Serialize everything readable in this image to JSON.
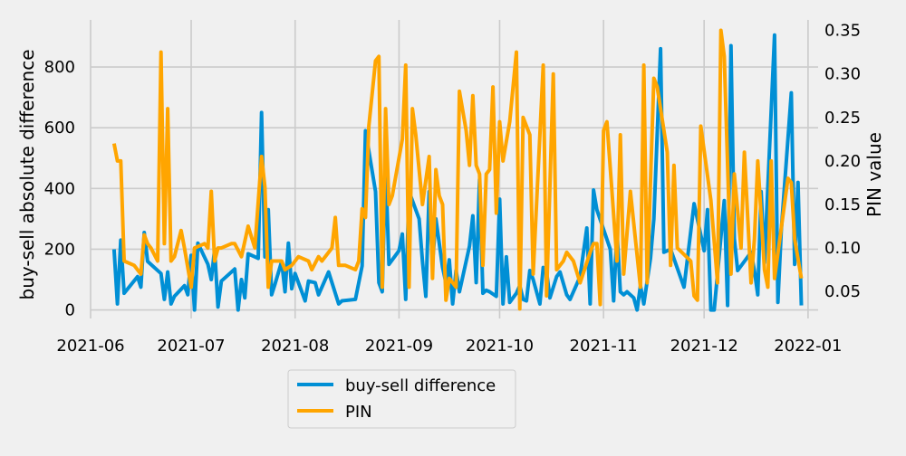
{
  "chart_data": {
    "type": "line",
    "x_axis": {
      "ticks": [
        "2021-06",
        "2021-07",
        "2021-08",
        "2021-09",
        "2021-10",
        "2021-11",
        "2021-12",
        "2022-01"
      ],
      "range": [
        "2021-06-01",
        "2022-01-04"
      ]
    },
    "y_left": {
      "label": "buy-sell absolute difference",
      "ticks": [
        0,
        200,
        400,
        600,
        800
      ],
      "range": [
        -28,
        955
      ]
    },
    "y_right": {
      "label": "PIN value",
      "ticks": [
        0.05,
        0.1,
        0.15,
        0.2,
        0.25,
        0.3,
        0.35
      ],
      "range": [
        0.019,
        0.362
      ]
    },
    "grid": true,
    "legend_placement": "bottom-center, below plot",
    "series": [
      {
        "name": "buy-sell difference",
        "axis": "left",
        "color": "#008fd5",
        "points": [
          [
            "2021-06-08",
            200
          ],
          [
            "2021-06-09",
            20
          ],
          [
            "2021-06-10",
            230
          ],
          [
            "2021-06-11",
            55
          ],
          [
            "2021-06-15",
            110
          ],
          [
            "2021-06-16",
            75
          ],
          [
            "2021-06-17",
            255
          ],
          [
            "2021-06-18",
            160
          ],
          [
            "2021-06-22",
            120
          ],
          [
            "2021-06-23",
            35
          ],
          [
            "2021-06-24",
            125
          ],
          [
            "2021-06-25",
            20
          ],
          [
            "2021-06-26",
            45
          ],
          [
            "2021-06-29",
            80
          ],
          [
            "2021-06-30",
            50
          ],
          [
            "2021-07-01",
            180
          ],
          [
            "2021-07-02",
            0
          ],
          [
            "2021-07-03",
            220
          ],
          [
            "2021-07-06",
            150
          ],
          [
            "2021-07-07",
            100
          ],
          [
            "2021-07-08",
            200
          ],
          [
            "2021-07-09",
            10
          ],
          [
            "2021-07-10",
            95
          ],
          [
            "2021-07-14",
            135
          ],
          [
            "2021-07-15",
            0
          ],
          [
            "2021-07-16",
            100
          ],
          [
            "2021-07-17",
            40
          ],
          [
            "2021-07-18",
            185
          ],
          [
            "2021-07-21",
            170
          ],
          [
            "2021-07-22",
            650
          ],
          [
            "2021-07-23",
            175
          ],
          [
            "2021-07-24",
            330
          ],
          [
            "2021-07-25",
            50
          ],
          [
            "2021-07-26",
            85
          ],
          [
            "2021-07-28",
            160
          ],
          [
            "2021-07-29",
            60
          ],
          [
            "2021-07-30",
            220
          ],
          [
            "2021-07-31",
            70
          ],
          [
            "2021-08-01",
            120
          ],
          [
            "2021-08-04",
            30
          ],
          [
            "2021-08-05",
            95
          ],
          [
            "2021-08-07",
            90
          ],
          [
            "2021-08-08",
            50
          ],
          [
            "2021-08-11",
            125
          ],
          [
            "2021-08-14",
            20
          ],
          [
            "2021-08-15",
            30
          ],
          [
            "2021-08-19",
            35
          ],
          [
            "2021-08-21",
            145
          ],
          [
            "2021-08-22",
            590
          ],
          [
            "2021-08-25",
            390
          ],
          [
            "2021-08-26",
            90
          ],
          [
            "2021-08-27",
            60
          ],
          [
            "2021-08-28",
            480
          ],
          [
            "2021-08-29",
            150
          ],
          [
            "2021-09-01",
            195
          ],
          [
            "2021-09-02",
            250
          ],
          [
            "2021-09-03",
            35
          ],
          [
            "2021-09-04",
            390
          ],
          [
            "2021-09-07",
            300
          ],
          [
            "2021-09-08",
            160
          ],
          [
            "2021-09-09",
            45
          ],
          [
            "2021-09-10",
            390
          ],
          [
            "2021-09-11",
            155
          ],
          [
            "2021-09-12",
            300
          ],
          [
            "2021-09-14",
            140
          ],
          [
            "2021-09-15",
            90
          ],
          [
            "2021-09-16",
            165
          ],
          [
            "2021-09-17",
            20
          ],
          [
            "2021-09-18",
            130
          ],
          [
            "2021-09-19",
            60
          ],
          [
            "2021-09-22",
            210
          ],
          [
            "2021-09-23",
            310
          ],
          [
            "2021-09-24",
            90
          ],
          [
            "2021-09-25",
            430
          ],
          [
            "2021-09-26",
            55
          ],
          [
            "2021-09-27",
            65
          ],
          [
            "2021-09-28",
            60
          ],
          [
            "2021-09-30",
            45
          ],
          [
            "2021-10-01",
            365
          ],
          [
            "2021-10-02",
            20
          ],
          [
            "2021-10-03",
            175
          ],
          [
            "2021-10-04",
            25
          ],
          [
            "2021-10-06",
            55
          ],
          [
            "2021-10-07",
            80
          ],
          [
            "2021-10-08",
            35
          ],
          [
            "2021-10-09",
            30
          ],
          [
            "2021-10-10",
            130
          ],
          [
            "2021-10-11",
            100
          ],
          [
            "2021-10-13",
            20
          ],
          [
            "2021-10-14",
            140
          ],
          [
            "2021-10-15",
            125
          ],
          [
            "2021-10-16",
            40
          ],
          [
            "2021-10-18",
            110
          ],
          [
            "2021-10-19",
            125
          ],
          [
            "2021-10-21",
            50
          ],
          [
            "2021-10-22",
            35
          ],
          [
            "2021-10-25",
            110
          ],
          [
            "2021-10-27",
            270
          ],
          [
            "2021-10-28",
            20
          ],
          [
            "2021-10-29",
            395
          ],
          [
            "2021-10-30",
            330
          ],
          [
            "2021-11-03",
            200
          ],
          [
            "2021-11-04",
            30
          ],
          [
            "2021-11-05",
            260
          ],
          [
            "2021-11-06",
            60
          ],
          [
            "2021-11-07",
            50
          ],
          [
            "2021-11-08",
            60
          ],
          [
            "2021-11-10",
            40
          ],
          [
            "2021-11-11",
            0
          ],
          [
            "2021-11-12",
            80
          ],
          [
            "2021-11-13",
            20
          ],
          [
            "2021-11-15",
            170
          ],
          [
            "2021-11-16",
            300
          ],
          [
            "2021-11-18",
            860
          ],
          [
            "2021-11-19",
            190
          ],
          [
            "2021-11-21",
            200
          ],
          [
            "2021-11-25",
            75
          ],
          [
            "2021-11-28",
            350
          ],
          [
            "2021-12-01",
            195
          ],
          [
            "2021-12-02",
            330
          ],
          [
            "2021-12-03",
            0
          ],
          [
            "2021-12-04",
            0
          ],
          [
            "2021-12-07",
            360
          ],
          [
            "2021-12-08",
            15
          ],
          [
            "2021-12-09",
            870
          ],
          [
            "2021-12-10",
            235
          ],
          [
            "2021-12-11",
            130
          ],
          [
            "2021-12-15",
            190
          ],
          [
            "2021-12-16",
            130
          ],
          [
            "2021-12-17",
            50
          ],
          [
            "2021-12-18",
            390
          ],
          [
            "2021-12-19",
            155
          ],
          [
            "2021-12-22",
            905
          ],
          [
            "2021-12-23",
            25
          ],
          [
            "2021-12-24",
            260
          ],
          [
            "2021-12-27",
            715
          ],
          [
            "2021-12-28",
            150
          ],
          [
            "2021-12-29",
            420
          ],
          [
            "2021-12-30",
            15
          ]
        ]
      },
      {
        "name": "PIN",
        "axis": "right",
        "color": "#ffa500",
        "points": [
          [
            "2021-06-08",
            0.22
          ],
          [
            "2021-06-09",
            0.2
          ],
          [
            "2021-06-10",
            0.2
          ],
          [
            "2021-06-11",
            0.085
          ],
          [
            "2021-06-14",
            0.08
          ],
          [
            "2021-06-15",
            0.075
          ],
          [
            "2021-06-16",
            0.07
          ],
          [
            "2021-06-17",
            0.115
          ],
          [
            "2021-06-18",
            0.105
          ],
          [
            "2021-06-19",
            0.1
          ],
          [
            "2021-06-21",
            0.085
          ],
          [
            "2021-06-22",
            0.325
          ],
          [
            "2021-06-23",
            0.105
          ],
          [
            "2021-06-24",
            0.26
          ],
          [
            "2021-06-25",
            0.085
          ],
          [
            "2021-06-26",
            0.09
          ],
          [
            "2021-06-28",
            0.12
          ],
          [
            "2021-06-29",
            0.1
          ],
          [
            "2021-07-01",
            0.055
          ],
          [
            "2021-07-02",
            0.1
          ],
          [
            "2021-07-05",
            0.105
          ],
          [
            "2021-07-06",
            0.1
          ],
          [
            "2021-07-07",
            0.165
          ],
          [
            "2021-07-08",
            0.085
          ],
          [
            "2021-07-09",
            0.1
          ],
          [
            "2021-07-10",
            0.1
          ],
          [
            "2021-07-13",
            0.105
          ],
          [
            "2021-07-14",
            0.105
          ],
          [
            "2021-07-16",
            0.09
          ],
          [
            "2021-07-18",
            0.125
          ],
          [
            "2021-07-20",
            0.1
          ],
          [
            "2021-07-22",
            0.205
          ],
          [
            "2021-07-23",
            0.17
          ],
          [
            "2021-07-24",
            0.055
          ],
          [
            "2021-07-25",
            0.085
          ],
          [
            "2021-07-28",
            0.085
          ],
          [
            "2021-07-29",
            0.075
          ],
          [
            "2021-07-31",
            0.08
          ],
          [
            "2021-08-02",
            0.09
          ],
          [
            "2021-08-05",
            0.085
          ],
          [
            "2021-08-06",
            0.075
          ],
          [
            "2021-08-08",
            0.09
          ],
          [
            "2021-08-09",
            0.085
          ],
          [
            "2021-08-12",
            0.1
          ],
          [
            "2021-08-13",
            0.135
          ],
          [
            "2021-08-14",
            0.08
          ],
          [
            "2021-08-16",
            0.08
          ],
          [
            "2021-08-19",
            0.075
          ],
          [
            "2021-08-20",
            0.085
          ],
          [
            "2021-08-21",
            0.145
          ],
          [
            "2021-08-22",
            0.135
          ],
          [
            "2021-08-23",
            0.24
          ],
          [
            "2021-08-25",
            0.315
          ],
          [
            "2021-08-26",
            0.32
          ],
          [
            "2021-08-27",
            0.055
          ],
          [
            "2021-08-28",
            0.26
          ],
          [
            "2021-08-29",
            0.15
          ],
          [
            "2021-08-30",
            0.16
          ],
          [
            "2021-09-02",
            0.225
          ],
          [
            "2021-09-03",
            0.31
          ],
          [
            "2021-09-04",
            0.055
          ],
          [
            "2021-09-05",
            0.26
          ],
          [
            "2021-09-06",
            0.23
          ],
          [
            "2021-09-08",
            0.15
          ],
          [
            "2021-09-10",
            0.205
          ],
          [
            "2021-09-11",
            0.065
          ],
          [
            "2021-09-12",
            0.19
          ],
          [
            "2021-09-13",
            0.16
          ],
          [
            "2021-09-14",
            0.15
          ],
          [
            "2021-09-15",
            0.04
          ],
          [
            "2021-09-16",
            0.065
          ],
          [
            "2021-09-18",
            0.055
          ],
          [
            "2021-09-19",
            0.28
          ],
          [
            "2021-09-21",
            0.235
          ],
          [
            "2021-09-22",
            0.195
          ],
          [
            "2021-09-23",
            0.275
          ],
          [
            "2021-09-24",
            0.195
          ],
          [
            "2021-09-25",
            0.185
          ],
          [
            "2021-09-26",
            0.08
          ],
          [
            "2021-09-27",
            0.185
          ],
          [
            "2021-09-28",
            0.19
          ],
          [
            "2021-09-29",
            0.285
          ],
          [
            "2021-09-30",
            0.14
          ],
          [
            "2021-10-01",
            0.245
          ],
          [
            "2021-10-02",
            0.2
          ],
          [
            "2021-10-04",
            0.245
          ],
          [
            "2021-10-06",
            0.325
          ],
          [
            "2021-10-07",
            0.03
          ],
          [
            "2021-10-08",
            0.25
          ],
          [
            "2021-10-10",
            0.23
          ],
          [
            "2021-10-11",
            0.07
          ],
          [
            "2021-10-14",
            0.31
          ],
          [
            "2021-10-15",
            0.045
          ],
          [
            "2021-10-17",
            0.3
          ],
          [
            "2021-10-18",
            0.075
          ],
          [
            "2021-10-20",
            0.085
          ],
          [
            "2021-10-21",
            0.095
          ],
          [
            "2021-10-23",
            0.085
          ],
          [
            "2021-10-25",
            0.06
          ],
          [
            "2021-10-28",
            0.095
          ],
          [
            "2021-10-29",
            0.105
          ],
          [
            "2021-10-30",
            0.105
          ],
          [
            "2021-10-31",
            0.035
          ],
          [
            "2021-11-01",
            0.235
          ],
          [
            "2021-11-02",
            0.245
          ],
          [
            "2021-11-05",
            0.085
          ],
          [
            "2021-11-06",
            0.23
          ],
          [
            "2021-11-07",
            0.07
          ],
          [
            "2021-11-09",
            0.165
          ],
          [
            "2021-11-12",
            0.055
          ],
          [
            "2021-11-13",
            0.31
          ],
          [
            "2021-11-14",
            0.06
          ],
          [
            "2021-11-16",
            0.295
          ],
          [
            "2021-11-17",
            0.285
          ],
          [
            "2021-11-20",
            0.21
          ],
          [
            "2021-11-21",
            0.08
          ],
          [
            "2021-11-22",
            0.195
          ],
          [
            "2021-11-23",
            0.1
          ],
          [
            "2021-11-27",
            0.085
          ],
          [
            "2021-11-28",
            0.045
          ],
          [
            "2021-11-29",
            0.04
          ],
          [
            "2021-11-30",
            0.24
          ],
          [
            "2021-12-03",
            0.155
          ],
          [
            "2021-12-05",
            0.06
          ],
          [
            "2021-12-06",
            0.35
          ],
          [
            "2021-12-07",
            0.32
          ],
          [
            "2021-12-09",
            0.07
          ],
          [
            "2021-12-10",
            0.185
          ],
          [
            "2021-12-12",
            0.1
          ],
          [
            "2021-12-13",
            0.21
          ],
          [
            "2021-12-15",
            0.06
          ],
          [
            "2021-12-16",
            0.11
          ],
          [
            "2021-12-17",
            0.2
          ],
          [
            "2021-12-19",
            0.075
          ],
          [
            "2021-12-20",
            0.055
          ],
          [
            "2021-12-21",
            0.2
          ],
          [
            "2021-12-22",
            0.065
          ],
          [
            "2021-12-26",
            0.18
          ],
          [
            "2021-12-27",
            0.175
          ],
          [
            "2021-12-28",
            0.11
          ],
          [
            "2021-12-30",
            0.065
          ]
        ]
      }
    ]
  }
}
